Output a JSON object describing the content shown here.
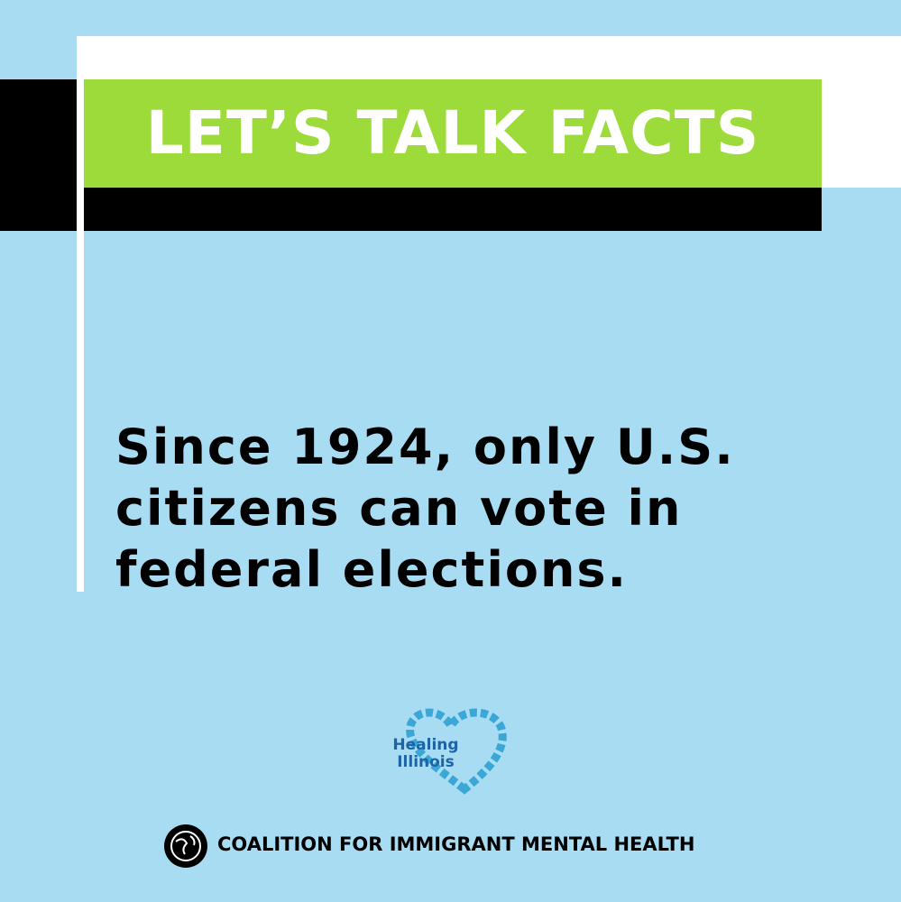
{
  "header": {
    "title": "LET’S TALK FACTS"
  },
  "body": {
    "lines": [
      "Since 1924, only U.S.",
      "citizens can vote in",
      "federal elections."
    ]
  },
  "logo": {
    "line1": "Healing",
    "line2": "Illinois"
  },
  "footer": {
    "text": "COALITION FOR IMMIGRANT MENTAL HEALTH"
  }
}
